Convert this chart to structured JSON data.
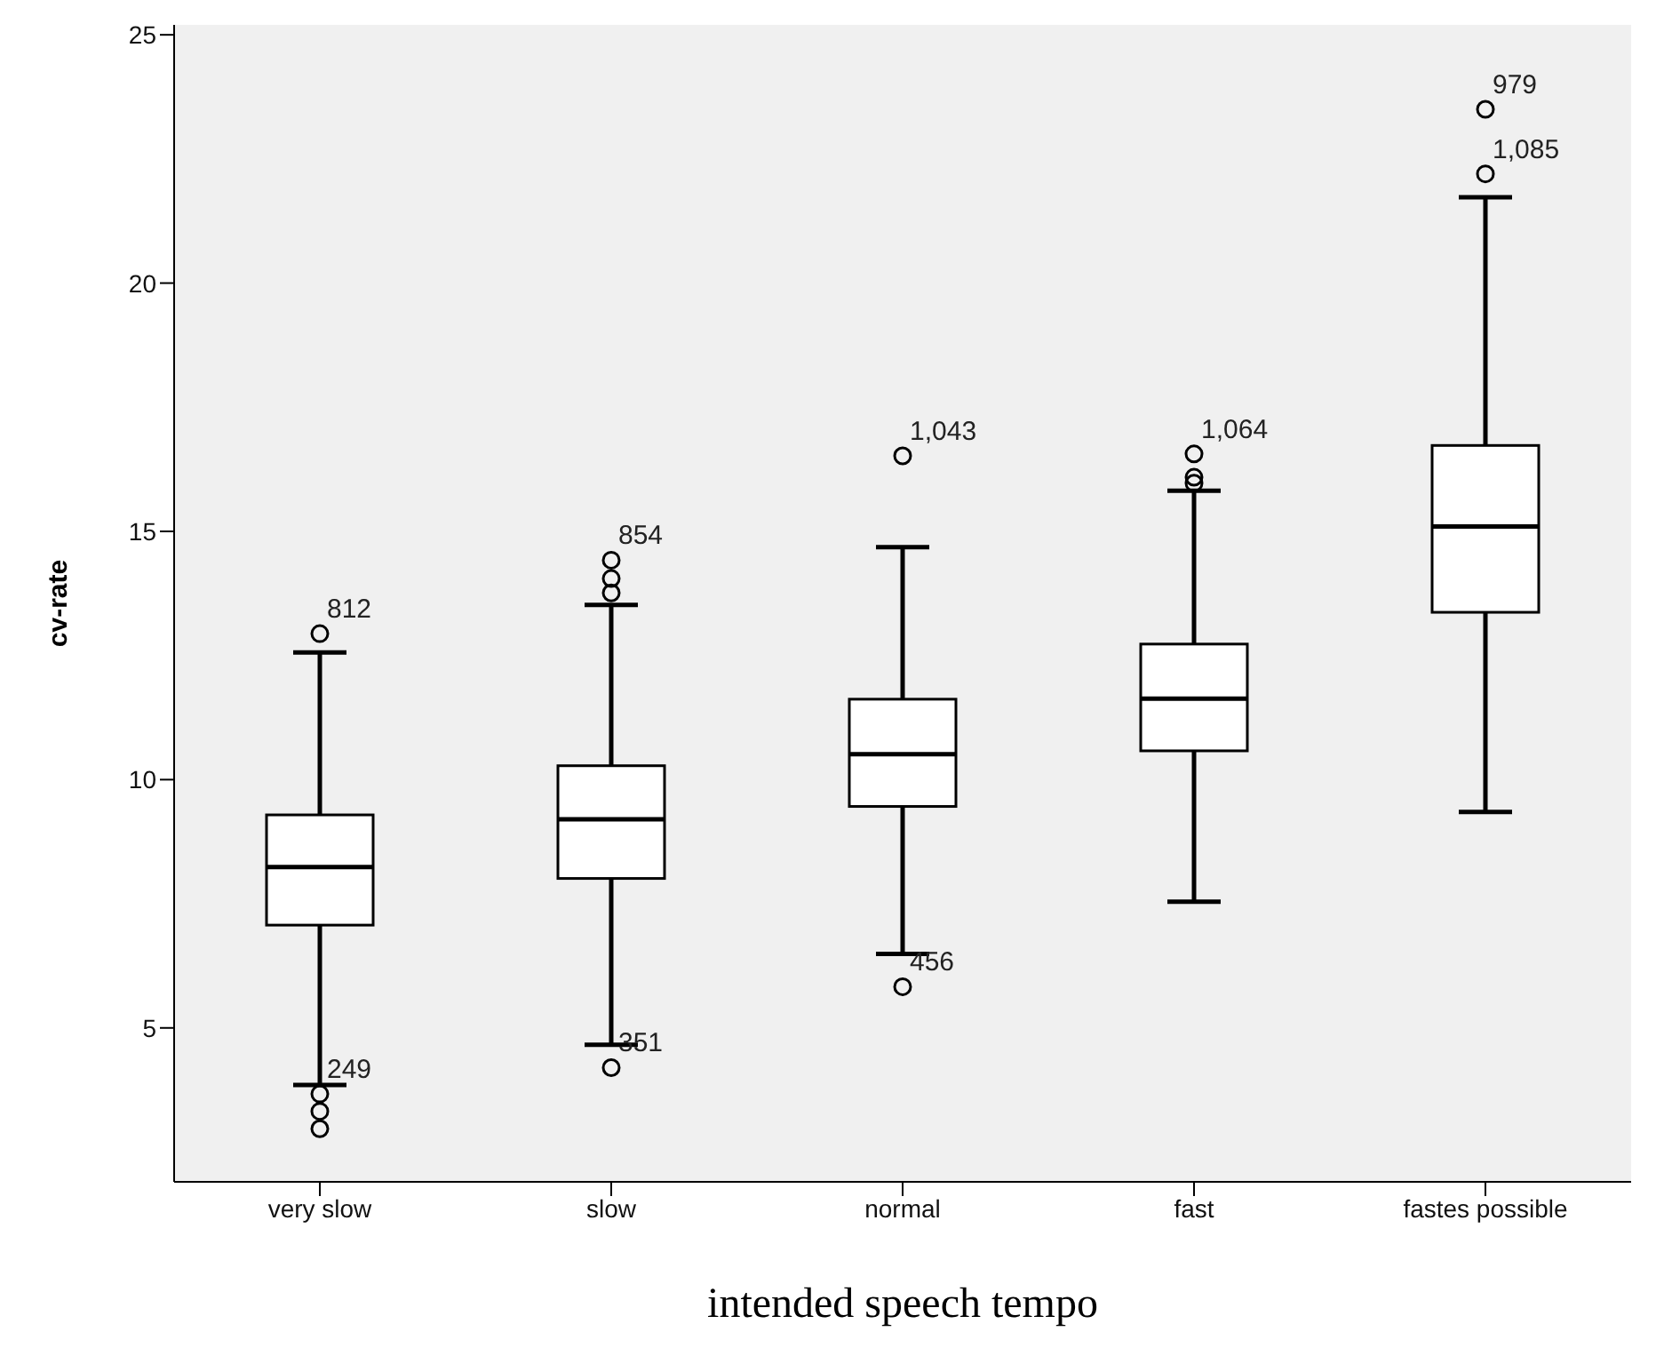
{
  "chart_data": {
    "type": "box",
    "xlabel": "intended speech tempo",
    "ylabel": "cv-rate",
    "categories": [
      "very slow",
      "slow",
      "normal",
      "fast",
      "fastes possible"
    ],
    "ylim": [
      1.9,
      25.2
    ],
    "yticks": [
      5,
      10,
      15,
      20,
      25
    ],
    "boxes": [
      {
        "low": 3.85,
        "q1": 7.07,
        "median": 8.24,
        "q3": 9.29,
        "high": 12.56
      },
      {
        "low": 4.66,
        "q1": 8.01,
        "median": 9.2,
        "q3": 10.28,
        "high": 13.52
      },
      {
        "low": 6.49,
        "q1": 9.46,
        "median": 10.51,
        "q3": 11.62,
        "high": 14.68
      },
      {
        "low": 7.54,
        "q1": 10.58,
        "median": 11.63,
        "q3": 12.73,
        "high": 15.82
      },
      {
        "low": 9.35,
        "q1": 13.37,
        "median": 15.1,
        "q3": 16.73,
        "high": 21.73
      }
    ],
    "series": [
      {
        "type": "scatter",
        "marker": "circle",
        "color": "#000000",
        "x": [
          "very slow",
          "very slow",
          "very slow",
          "very slow",
          "slow",
          "slow",
          "slow",
          "slow",
          "normal",
          "normal",
          "fast",
          "fast",
          "fast",
          "fastes possible",
          "fastes possible"
        ],
        "values": [
          12.94,
          3.67,
          3.32,
          2.97,
          14.42,
          14.05,
          13.76,
          4.2,
          16.52,
          5.83,
          16.56,
          16.09,
          15.97,
          23.5,
          22.2
        ]
      }
    ],
    "annotations": [
      {
        "text": "812",
        "x": "very slow",
        "y": 12.94
      },
      {
        "text": "249",
        "x": "very slow",
        "y": 3.67
      },
      {
        "text": "854",
        "x": "slow",
        "y": 14.42
      },
      {
        "text": "351",
        "x": "slow",
        "y": 4.2
      },
      {
        "text": "1,043",
        "x": "normal",
        "y": 16.52
      },
      {
        "text": "456",
        "x": "normal",
        "y": 5.83
      },
      {
        "text": "1,064",
        "x": "fast",
        "y": 16.56
      },
      {
        "text": "979",
        "x": "fastes possible",
        "y": 23.5
      },
      {
        "text": "1,085",
        "x": "fastes possible",
        "y": 22.2
      }
    ]
  }
}
